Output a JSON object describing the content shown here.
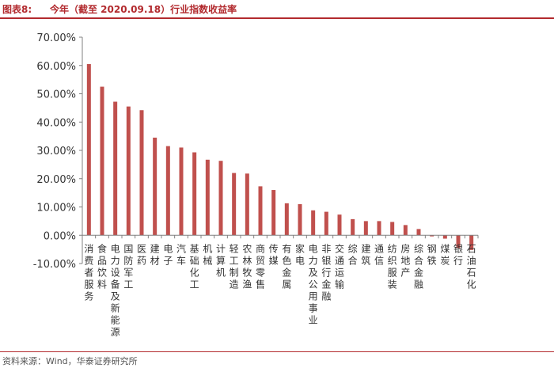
{
  "header": {
    "figure_label": "图表8:",
    "title": "今年（截至 2020.09.18）行业指数收益率"
  },
  "footer": {
    "source": "资料来源：Wind，华泰证券研究所"
  },
  "colors": {
    "bar": "#c0504d",
    "accent": "#b22a2e",
    "axis": "#808080"
  },
  "chart_data": {
    "type": "bar",
    "title": "",
    "xlabel": "",
    "ylabel": "",
    "ylim": [
      -0.1,
      0.7
    ],
    "y_ticks": [
      {
        "value": 0.7,
        "label": "70.00%"
      },
      {
        "value": 0.6,
        "label": "60.00%"
      },
      {
        "value": 0.5,
        "label": "50.00%"
      },
      {
        "value": 0.4,
        "label": "40.00%"
      },
      {
        "value": 0.3,
        "label": "30.00%"
      },
      {
        "value": 0.2,
        "label": "20.00%"
      },
      {
        "value": 0.1,
        "label": "10.00%"
      },
      {
        "value": 0.0,
        "label": "0.00%"
      },
      {
        "value": -0.1,
        "label": "-10.00%"
      }
    ],
    "grid": false,
    "legend": "none",
    "categories": [
      "消费者服务",
      "食品饮料",
      "电力设备及新能源",
      "国防军工",
      "医药",
      "建材",
      "电子",
      "汽车",
      "基础化工",
      "机械",
      "计算机",
      "轻工制造",
      "农林牧渔",
      "商贸零售",
      "传媒",
      "有色金属",
      "家电",
      "电力及公用事业",
      "非银行金融",
      "交通运输",
      "综合",
      "建筑",
      "通信",
      "纺织服装",
      "房地产",
      "综合金融",
      "钢铁",
      "煤炭",
      "银行",
      "石油石化"
    ],
    "values": [
      0.605,
      0.525,
      0.472,
      0.455,
      0.442,
      0.345,
      0.315,
      0.31,
      0.293,
      0.267,
      0.263,
      0.22,
      0.218,
      0.173,
      0.16,
      0.113,
      0.11,
      0.088,
      0.083,
      0.073,
      0.057,
      0.05,
      0.05,
      0.047,
      0.036,
      0.022,
      -0.004,
      -0.012,
      -0.045,
      -0.052
    ]
  }
}
